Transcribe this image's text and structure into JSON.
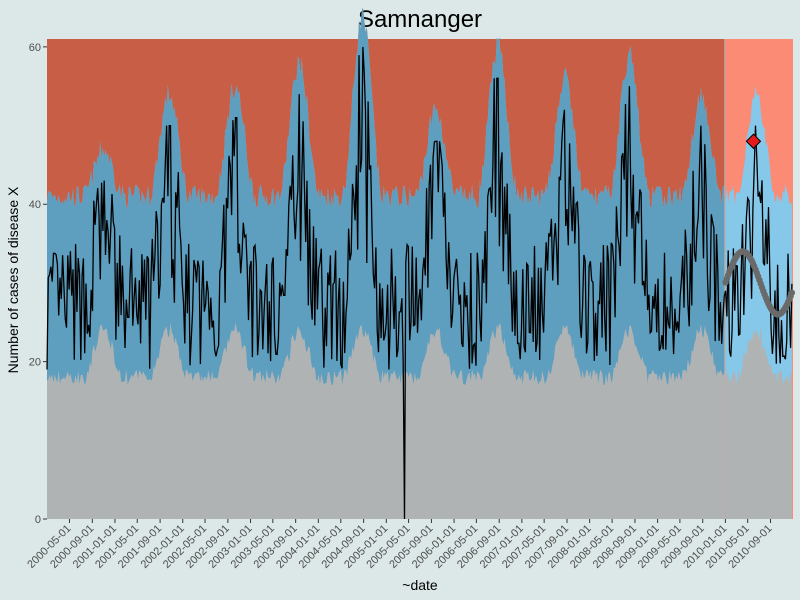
{
  "chart_data": {
    "type": "line",
    "title": "Samnanger",
    "xlabel": "~date",
    "ylabel": "Number of cases of disease X",
    "ylim": [
      0,
      61
    ],
    "y_ticks": [
      0,
      20,
      40,
      60
    ],
    "x_range": [
      "2000-01-01",
      "2010-12-31"
    ],
    "x_ticks": [
      "2000-05-01",
      "2000-09-01",
      "2001-01-01",
      "2001-05-01",
      "2001-09-01",
      "2002-01-01",
      "2002-05-01",
      "2002-09-01",
      "2003-01-01",
      "2003-05-01",
      "2003-09-01",
      "2004-01-01",
      "2004-05-01",
      "2004-09-01",
      "2005-01-01",
      "2005-05-01",
      "2005-09-01",
      "2006-01-01",
      "2006-05-01",
      "2006-09-01",
      "2007-01-01",
      "2007-05-01",
      "2007-09-01",
      "2008-01-01",
      "2008-05-01",
      "2008-09-01",
      "2009-01-01",
      "2009-05-01",
      "2009-09-01",
      "2010-01-01",
      "2010-05-01",
      "2010-09-01"
    ],
    "forecast_start": "2010-01-01",
    "grid": false,
    "legend": "none",
    "series": [
      {
        "role": "observed-cases-line",
        "description_from_image": "weekly counts, seasonal peaks",
        "season_peaks": [
          {
            "date": "2000-11-01",
            "value": 43
          },
          {
            "date": "2001-10-20",
            "value": 50
          },
          {
            "date": "2002-10-10",
            "value": 51
          },
          {
            "date": "2003-09-20",
            "value": 54
          },
          {
            "date": "2004-08-25",
            "value": 60
          },
          {
            "date": "2005-09-25",
            "value": 48
          },
          {
            "date": "2006-08-25",
            "value": 56
          },
          {
            "date": "2007-08-20",
            "value": 52
          },
          {
            "date": "2008-08-01",
            "value": 55
          },
          {
            "date": "2009-08-25",
            "value": 50
          },
          {
            "date": "2010-06-15",
            "value": 50
          }
        ],
        "dip": {
          "date": "2005-04-10",
          "value": 0
        }
      },
      {
        "role": "expected-forecast-points",
        "approx_range": [
          26,
          34
        ]
      },
      {
        "role": "alert-point",
        "date": "2010-06-01",
        "value": 48
      }
    ],
    "colors": {
      "panel_background": "#b0b3b3",
      "normal_band": "#5e9ebf",
      "alert_band": "#c95e46",
      "forecast_normal_band": "#86c8ea",
      "forecast_alert_band": "#fb8b74",
      "line": "#000000",
      "forecast_points": "#6a6a6a",
      "alert_point": "#e41a1c"
    }
  }
}
